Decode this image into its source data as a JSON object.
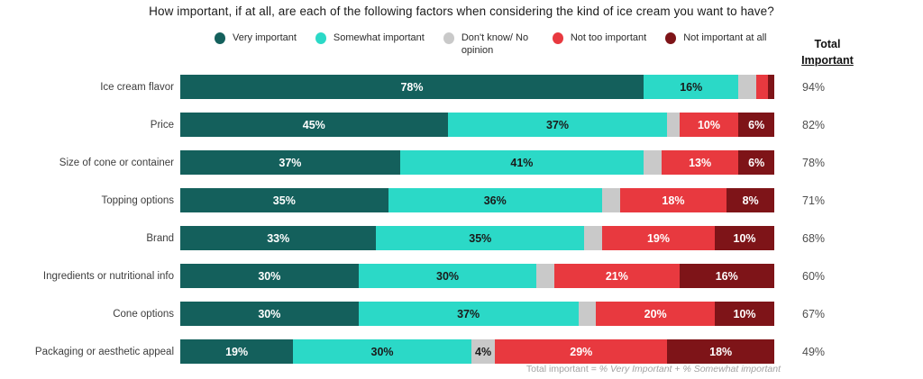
{
  "title": "How important, if at all, are each of the following factors when considering the kind of ice cream you want to have?",
  "legend": {
    "items": [
      {
        "label": "Very important",
        "color": "#14605C"
      },
      {
        "label": "Somewhat important",
        "color": "#2BD9C7"
      },
      {
        "label": "Don't know/ No opinion",
        "color": "#C9C9C9"
      },
      {
        "label": "Not too important",
        "color": "#E8393F"
      },
      {
        "label": "Not important at all",
        "color": "#7E1418"
      }
    ]
  },
  "total_column": {
    "header_line1": "Total",
    "header_line2": "Important"
  },
  "footnote": {
    "prefix": "Total important = ",
    "formula": "% Very Important + % Somewhat important"
  },
  "chart_data": {
    "type": "bar",
    "orientation": "horizontal",
    "stacked": true,
    "axis_range_percent": [
      0,
      100
    ],
    "value_suffix": "%",
    "label_min_value": 4,
    "grid": false,
    "legend_position": "top",
    "categories": [
      "Ice cream flavor",
      "Price",
      "Size of cone or container",
      "Topping options",
      "Brand",
      "Ingredients or nutritional info",
      "Cone options",
      "Packaging or aesthetic appeal"
    ],
    "series": [
      {
        "name": "Very important",
        "color": "#14605C",
        "label_color": "#FFFFFF",
        "values": [
          78,
          45,
          37,
          35,
          33,
          30,
          30,
          19
        ]
      },
      {
        "name": "Somewhat important",
        "color": "#2BD9C7",
        "label_color": "#1A1A1A",
        "values": [
          16,
          37,
          41,
          36,
          35,
          30,
          37,
          30
        ]
      },
      {
        "name": "Don't know/ No opinion",
        "color": "#C9C9C9",
        "label_color": "#1A1A1A",
        "values": [
          3,
          2,
          3,
          3,
          3,
          3,
          3,
          4
        ]
      },
      {
        "name": "Not too important",
        "color": "#E8393F",
        "label_color": "#FFFFFF",
        "values": [
          2,
          10,
          13,
          18,
          19,
          21,
          20,
          29
        ]
      },
      {
        "name": "Not important at all",
        "color": "#7E1418",
        "label_color": "#FFFFFF",
        "values": [
          1,
          6,
          6,
          8,
          10,
          16,
          10,
          18
        ]
      }
    ],
    "totals": [
      94,
      82,
      78,
      71,
      68,
      60,
      67,
      49
    ]
  }
}
